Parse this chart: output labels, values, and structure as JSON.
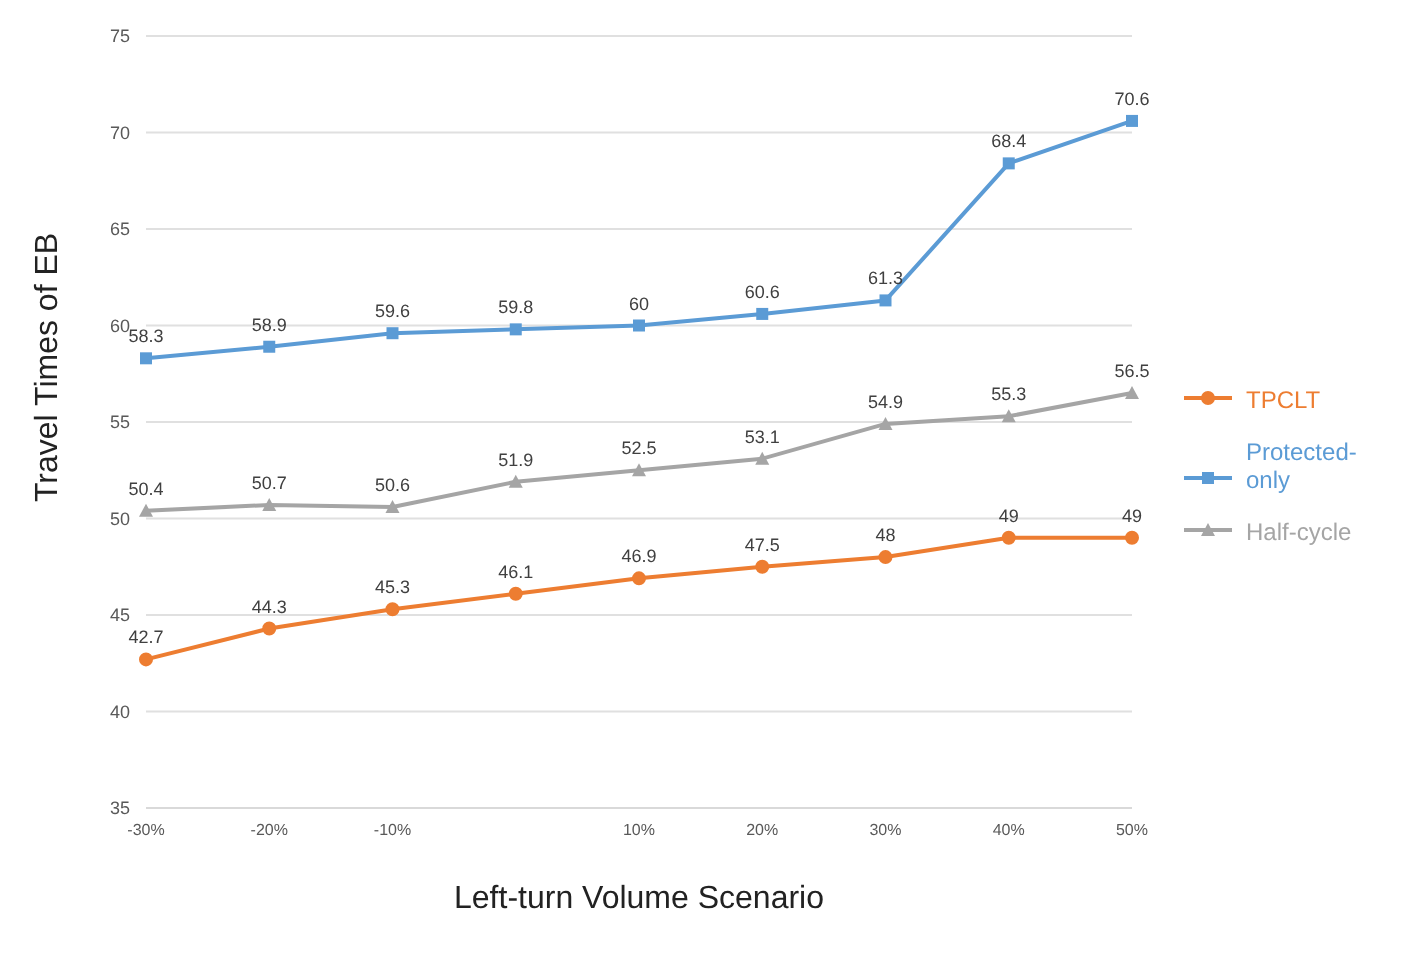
{
  "chart_data": {
    "type": "line",
    "xlabel": "Left-turn Volume Scenario",
    "ylabel": "Travel Times of EB",
    "categories": [
      "-30%",
      "-20%",
      "-10%",
      null,
      "10%",
      "20%",
      "30%",
      "40%",
      "50%"
    ],
    "series": [
      {
        "name": "TPCLT",
        "color": "#ed7d31",
        "marker": "circle",
        "values": [
          42.7,
          44.3,
          45.3,
          46.1,
          46.9,
          47.5,
          48,
          49,
          49
        ]
      },
      {
        "name": "Protected-only",
        "color": "#5b9bd5",
        "marker": "square",
        "values": [
          58.3,
          58.9,
          59.6,
          59.8,
          60,
          60.6,
          61.3,
          68.4,
          70.6
        ]
      },
      {
        "name": "Half-cycle",
        "color": "#a5a5a5",
        "marker": "triangle",
        "values": [
          50.4,
          50.7,
          50.6,
          51.9,
          52.5,
          53.1,
          54.9,
          55.3,
          56.5
        ]
      }
    ],
    "ylim": [
      35,
      75
    ],
    "yticks": [
      35,
      40,
      45,
      50,
      55,
      60,
      65,
      70,
      75
    ],
    "grid": "y",
    "legend": "right",
    "data_labels": true,
    "line_style": "solid"
  }
}
